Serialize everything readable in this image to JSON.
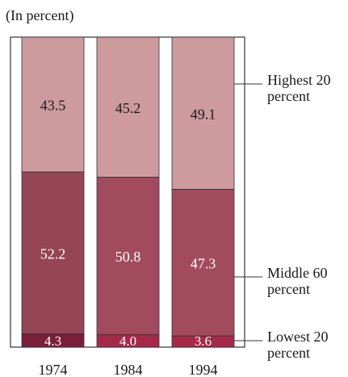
{
  "chart_data": {
    "type": "bar",
    "stacked": true,
    "percent_stacked": true,
    "subtitle": "(In percent)",
    "categories": [
      "1974",
      "1984",
      "1994"
    ],
    "series": [
      {
        "name": "Lowest 20 percent",
        "values": [
          4.3,
          4.0,
          3.6
        ],
        "value_labels": [
          "4.3",
          "4.0",
          "3.6"
        ]
      },
      {
        "name": "Middle 60 percent",
        "values": [
          52.2,
          50.8,
          47.3
        ],
        "value_labels": [
          "52.2",
          "50.8",
          "47.3"
        ]
      },
      {
        "name": "Highest 20 percent",
        "values": [
          43.5,
          45.2,
          49.1
        ],
        "value_labels": [
          "43.5",
          "45.2",
          "49.1"
        ]
      }
    ],
    "legend": {
      "placement": "right",
      "entries": [
        {
          "line1": "Highest 20",
          "line2": "percent"
        },
        {
          "line1": "Middle 60",
          "line2": "percent"
        },
        {
          "line1": "Lowest 20",
          "line2": "percent"
        }
      ]
    },
    "ylim": [
      0,
      100
    ],
    "grid": false
  },
  "colors": {
    "highest": "#cd9a9e",
    "middle": [
      "#954555",
      "#a34b5e",
      "#a34b5e"
    ],
    "lowest": [
      "#7a1e3a",
      "#a52a4a",
      "#a52a4a"
    ],
    "outline": "#333333",
    "text_light": "#ffffff",
    "text_dark": "#1a1a1a"
  }
}
